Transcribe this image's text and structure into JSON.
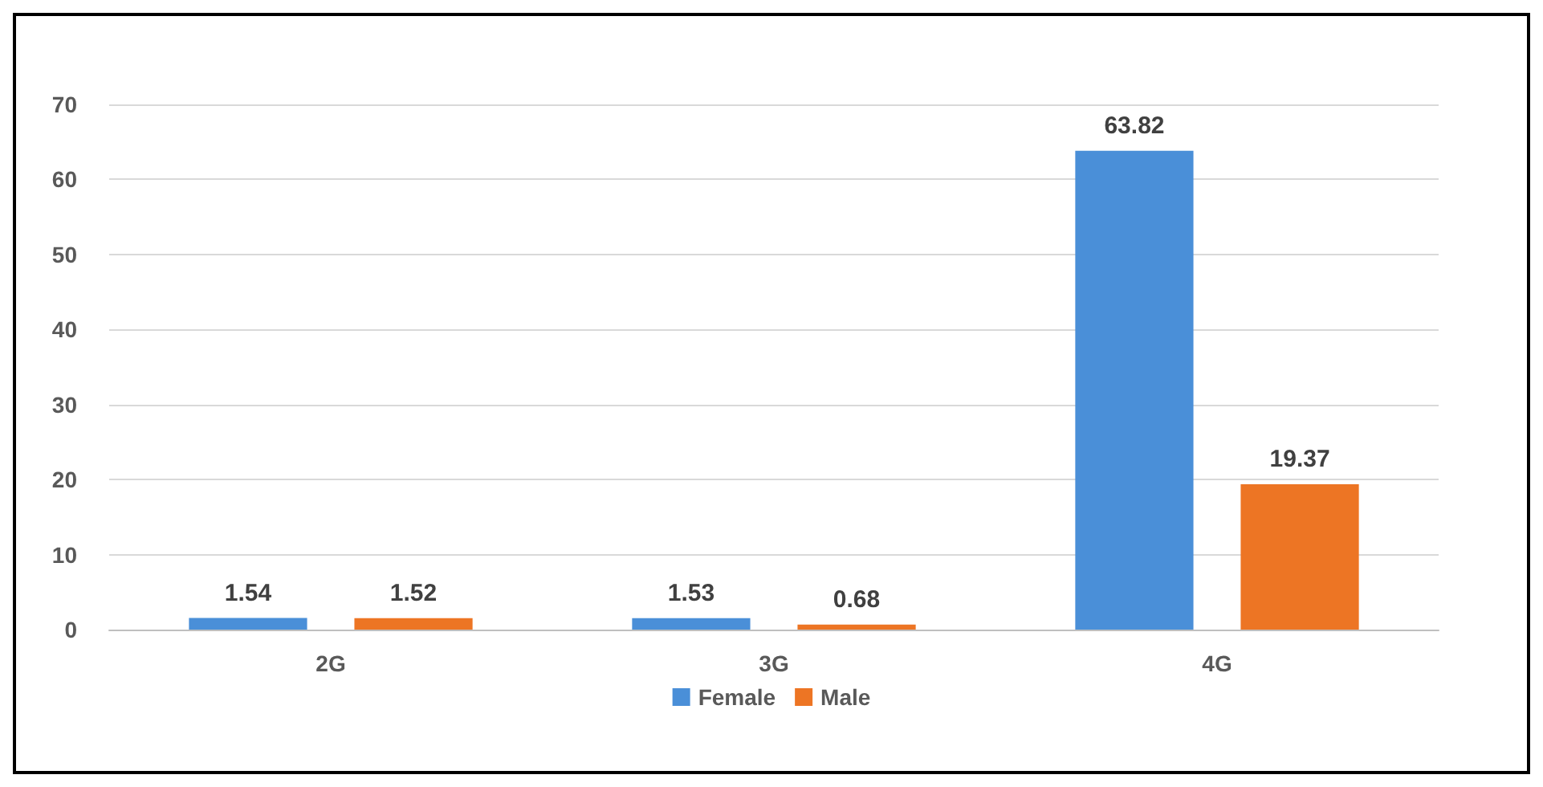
{
  "chart_data": {
    "type": "bar",
    "categories": [
      "2G",
      "3G",
      "4G"
    ],
    "series": [
      {
        "name": "Female",
        "color": "#4a8fd8",
        "values": [
          1.54,
          1.53,
          63.82
        ]
      },
      {
        "name": "Male",
        "color": "#ed7524",
        "values": [
          1.52,
          0.68,
          19.37
        ]
      }
    ],
    "ylim": [
      0,
      70
    ],
    "yticks": [
      0,
      10,
      20,
      30,
      40,
      50,
      60,
      70
    ],
    "grid": "y",
    "legend": "bottom",
    "data_labels": true
  }
}
